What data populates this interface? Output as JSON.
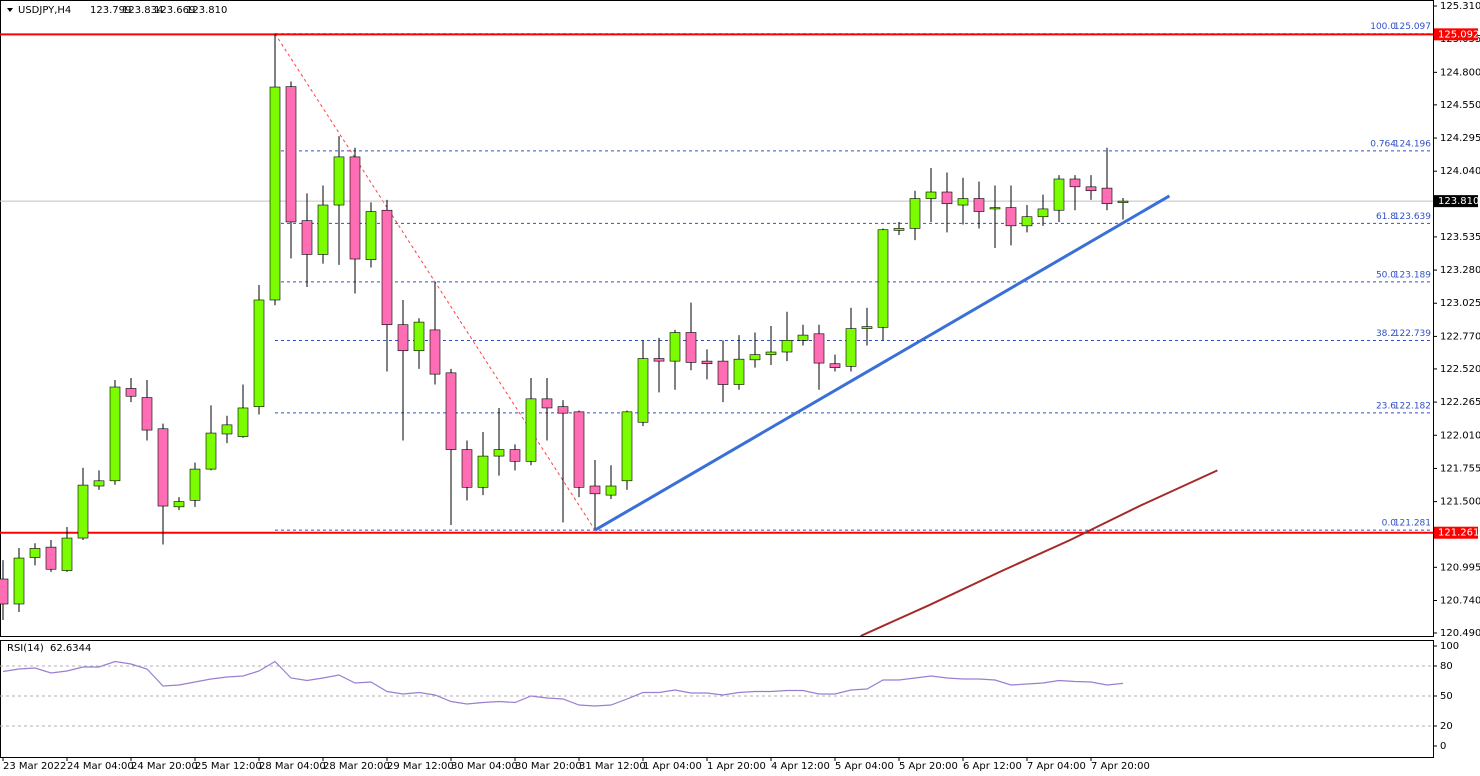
{
  "chart_data": {
    "type": "candlestick",
    "symbol": "USDJPY,H4",
    "categories": [
      "23 Mar 2022",
      null,
      null,
      null,
      "24 Mar 04:00",
      null,
      null,
      null,
      "24 Mar 20:00",
      null,
      null,
      null,
      "25 Mar 12:00",
      null,
      null,
      null,
      "28 Mar 04:00",
      null,
      null,
      null,
      "28 Mar 20:00",
      null,
      null,
      null,
      "29 Mar 12:00",
      null,
      null,
      null,
      "30 Mar 04:00",
      null,
      null,
      null,
      "30 Mar 20:00",
      null,
      null,
      null,
      "31 Mar 12:00",
      null,
      null,
      null,
      "1 Apr 04:00",
      null,
      null,
      null,
      "1 Apr 20:00",
      null,
      null,
      null,
      "4 Apr 12:00",
      null,
      null,
      null,
      "5 Apr 04:00",
      null,
      null,
      null,
      "5 Apr 20:00",
      null,
      null,
      null,
      "6 Apr 12:00",
      null,
      null,
      null,
      "7 Apr 04:00",
      null,
      null,
      null,
      "7 Apr 20:00",
      null,
      null
    ],
    "open": [
      120.905,
      120.713,
      121.07,
      121.15,
      120.97,
      121.22,
      121.62,
      121.66,
      122.37,
      122.3,
      122.06,
      121.46,
      121.51,
      121.75,
      122.02,
      122.0,
      122.23,
      123.05,
      124.69,
      123.66,
      123.4,
      123.78,
      124.15,
      123.36,
      123.74,
      122.86,
      122.66,
      122.82,
      122.49,
      121.9,
      121.61,
      121.85,
      121.9,
      121.81,
      122.29,
      122.23,
      122.19,
      121.62,
      121.55,
      121.66,
      122.11,
      122.6,
      122.58,
      122.8,
      122.58,
      122.58,
      122.4,
      122.59,
      122.63,
      122.65,
      122.74,
      122.79,
      122.56,
      122.54,
      122.83,
      122.84,
      123.585,
      123.6,
      123.83,
      123.88,
      123.78,
      123.83,
      123.75,
      123.76,
      123.62,
      123.69,
      123.74,
      123.98,
      123.92,
      123.91,
      123.799
    ],
    "high": [
      121.05,
      121.143,
      121.18,
      121.205,
      121.305,
      121.76,
      121.74,
      122.435,
      122.45,
      122.435,
      122.1,
      121.535,
      121.8,
      122.24,
      122.16,
      122.4,
      123.165,
      125.097,
      124.73,
      123.87,
      123.93,
      124.31,
      124.22,
      123.8,
      123.82,
      123.05,
      122.91,
      123.19,
      122.52,
      121.97,
      122.035,
      122.22,
      121.94,
      122.45,
      122.45,
      122.28,
      122.2,
      121.82,
      121.78,
      122.2,
      122.74,
      122.76,
      122.82,
      123.03,
      122.67,
      122.74,
      122.78,
      122.8,
      122.85,
      122.96,
      122.86,
      122.86,
      122.63,
      122.99,
      122.99,
      123.6,
      123.65,
      123.89,
      124.065,
      124.03,
      123.99,
      123.96,
      123.93,
      123.93,
      123.78,
      123.86,
      124.01,
      124.01,
      124.01,
      124.22,
      123.834
    ],
    "low": [
      120.59,
      120.651,
      121.01,
      120.96,
      120.96,
      121.205,
      121.59,
      121.63,
      122.265,
      121.97,
      121.17,
      121.435,
      121.46,
      121.74,
      121.95,
      121.99,
      122.17,
      123.01,
      123.37,
      123.15,
      123.33,
      123.32,
      123.1,
      123.3,
      122.5,
      121.97,
      122.52,
      122.4,
      121.32,
      121.51,
      121.55,
      121.7,
      121.74,
      121.78,
      121.97,
      121.34,
      121.535,
      121.281,
      121.52,
      121.59,
      122.08,
      122.34,
      122.36,
      122.51,
      122.44,
      122.265,
      122.36,
      122.53,
      122.55,
      122.58,
      122.7,
      122.36,
      122.5,
      122.5,
      122.7,
      122.74,
      123.55,
      123.51,
      123.65,
      123.57,
      123.63,
      123.6,
      123.45,
      123.47,
      123.57,
      123.62,
      123.65,
      123.74,
      123.82,
      123.74,
      123.669
    ],
    "close": [
      120.713,
      121.066,
      121.14,
      120.98,
      121.22,
      121.627,
      121.66,
      122.381,
      122.31,
      122.05,
      121.466,
      121.5,
      121.75,
      122.027,
      122.09,
      122.22,
      123.05,
      124.687,
      123.65,
      123.4,
      123.78,
      124.15,
      123.365,
      123.73,
      122.86,
      122.66,
      122.88,
      122.48,
      121.9,
      121.61,
      121.85,
      121.9,
      121.81,
      122.29,
      122.22,
      122.18,
      121.61,
      121.56,
      121.62,
      122.19,
      122.6,
      122.58,
      122.8,
      122.57,
      122.56,
      122.4,
      122.595,
      122.63,
      122.65,
      122.74,
      122.78,
      122.565,
      122.53,
      122.83,
      122.845,
      123.59,
      123.6,
      123.83,
      123.88,
      123.79,
      123.83,
      123.73,
      123.76,
      123.62,
      123.69,
      123.75,
      123.98,
      123.92,
      123.89,
      123.79,
      123.81
    ],
    "up_color": "#7cfc00",
    "down_color": "#ff6eb4",
    "ylim": [
      120.49,
      125.31
    ],
    "yticks": [
      {
        "value": 125.31,
        "label": "125.310"
      },
      125.055,
      {
        "value": 124.8,
        "label": "124.800"
      },
      {
        "value": 124.55,
        "label": "124.550"
      },
      124.295,
      {
        "value": 124.04,
        "label": "124.040"
      },
      123.535,
      {
        "value": 123.28,
        "label": "123.280"
      },
      123.025,
      {
        "value": 122.77,
        "label": "122.770"
      },
      {
        "value": 122.52,
        "label": "122.520"
      },
      122.265,
      {
        "value": 122.01,
        "label": "122.010"
      },
      121.755,
      {
        "value": 121.5,
        "label": "121.500"
      },
      120.995,
      {
        "value": 120.74,
        "label": "120.740"
      },
      {
        "value": 120.49,
        "label": "120.490"
      }
    ],
    "current_price": {
      "value": 123.81,
      "label": "123.810"
    },
    "price_lines": [
      {
        "value": 125.092,
        "color": "#ff0000"
      },
      {
        "value": 121.261,
        "color": "#ff0000"
      }
    ],
    "fibonacci": {
      "color": "#ff4040",
      "level_color": "#3050c8",
      "from": [
        17,
        125.097
      ],
      "to": [
        37,
        121.281
      ],
      "levels": [
        {
          "level": "100.0",
          "value": 125.097
        },
        {
          "level": "0.764",
          "value": 124.196
        },
        {
          "level": "61.8",
          "value": 123.639
        },
        {
          "level": "50.0",
          "value": 123.189
        },
        {
          "level": "38.2",
          "value": 122.739
        },
        {
          "level": "23.6",
          "value": 122.182
        },
        {
          "level": "0.0",
          "value": 121.281
        }
      ]
    },
    "trendlines": [
      {
        "color": "#3a6fd8",
        "from": [
          37,
          121.281
        ],
        "to": [
          72.9,
          123.85
        ]
      }
    ],
    "moving_average": {
      "color": "#a52a2a",
      "x": [
        53.6,
        57.9,
        62.3,
        66.7,
        71.1,
        75.9
      ],
      "values": [
        120.467,
        120.705,
        120.96,
        121.205,
        121.47,
        121.74
      ]
    },
    "rsi": {
      "title": "RSI(14)",
      "color": "#9a7fd1",
      "ylim": [
        0,
        100
      ],
      "yticks": [
        100,
        80,
        50,
        20,
        0
      ],
      "levels": [
        80,
        50,
        20
      ],
      "values": [
        74.5,
        77,
        78,
        73,
        75,
        79,
        79,
        84.5,
        82,
        77,
        60,
        61,
        64,
        67,
        69,
        70,
        75,
        84.5,
        68,
        65.5,
        68,
        71,
        63,
        64,
        54.5,
        52,
        53.5,
        51,
        44.5,
        42,
        43.5,
        44.5,
        43.5,
        50,
        48,
        47,
        41,
        40,
        41,
        47,
        53.5,
        53.5,
        56,
        53,
        53,
        51,
        53.5,
        54.5,
        54.5,
        55.5,
        55.5,
        52,
        52,
        56,
        57,
        66,
        66,
        68,
        70,
        68,
        67,
        67,
        66,
        61,
        62,
        63,
        65.5,
        64.5,
        64,
        61,
        62.6344
      ]
    }
  }
}
